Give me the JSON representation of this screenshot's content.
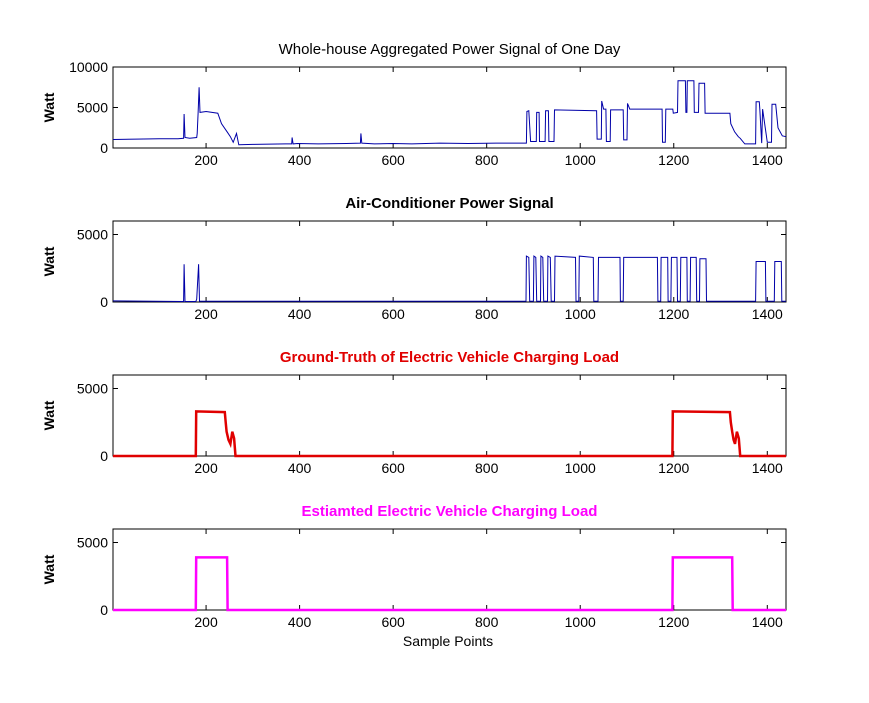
{
  "figure": {
    "xlabel": "Sample Points"
  },
  "chart_data": [
    {
      "type": "line",
      "title": "Whole-house Aggregated Power Signal of One Day",
      "title_color": "#000000",
      "title_weight": "normal",
      "ylabel": "Watt",
      "xlabel": "",
      "xlim": [
        1,
        1440
      ],
      "ylim": [
        0,
        10000
      ],
      "xticks": [
        200,
        400,
        600,
        800,
        1000,
        1200,
        1400
      ],
      "yticks": [
        0,
        5000,
        10000
      ],
      "grid": false,
      "series": [
        {
          "color": "#0000a8",
          "line_width": 1,
          "points": [
            [
              1,
              1050
            ],
            [
              50,
              1100
            ],
            [
              100,
              1150
            ],
            [
              140,
              1150
            ],
            [
              152,
              1200
            ],
            [
              153,
              4200
            ],
            [
              155,
              1300
            ],
            [
              165,
              1200
            ],
            [
              180,
              1300
            ],
            [
              181,
              1800
            ],
            [
              183,
              4300
            ],
            [
              185,
              7500
            ],
            [
              187,
              4400
            ],
            [
              200,
              4500
            ],
            [
              225,
              4300
            ],
            [
              233,
              3000
            ],
            [
              245,
              2000
            ],
            [
              252,
              1400
            ],
            [
              258,
              700
            ],
            [
              265,
              1800
            ],
            [
              270,
              400
            ],
            [
              300,
              450
            ],
            [
              370,
              500
            ],
            [
              383,
              500
            ],
            [
              384,
              1300
            ],
            [
              386,
              500
            ],
            [
              395,
              550
            ],
            [
              440,
              500
            ],
            [
              500,
              550
            ],
            [
              530,
              600
            ],
            [
              531,
              1800
            ],
            [
              533,
              600
            ],
            [
              560,
              500
            ],
            [
              600,
              550
            ],
            [
              640,
              500
            ],
            [
              700,
              600
            ],
            [
              760,
              550
            ],
            [
              820,
              600
            ],
            [
              870,
              600
            ],
            [
              885,
              600
            ],
            [
              886,
              4500
            ],
            [
              890,
              4600
            ],
            [
              894,
              800
            ],
            [
              906,
              800
            ],
            [
              907,
              4400
            ],
            [
              912,
              4400
            ],
            [
              913,
              800
            ],
            [
              925,
              800
            ],
            [
              926,
              4600
            ],
            [
              932,
              4600
            ],
            [
              933,
              800
            ],
            [
              944,
              800
            ],
            [
              945,
              4700
            ],
            [
              1035,
              4600
            ],
            [
              1036,
              1100
            ],
            [
              1045,
              1100
            ],
            [
              1046,
              5800
            ],
            [
              1050,
              4800
            ],
            [
              1055,
              4800
            ],
            [
              1056,
              800
            ],
            [
              1064,
              800
            ],
            [
              1065,
              4700
            ],
            [
              1092,
              4700
            ],
            [
              1093,
              1000
            ],
            [
              1100,
              1000
            ],
            [
              1101,
              5500
            ],
            [
              1106,
              4800
            ],
            [
              1175,
              4800
            ],
            [
              1176,
              700
            ],
            [
              1182,
              700
            ],
            [
              1183,
              4800
            ],
            [
              1198,
              4800
            ],
            [
              1199,
              4300
            ],
            [
              1208,
              4400
            ],
            [
              1209,
              8300
            ],
            [
              1225,
              8300
            ],
            [
              1226,
              4400
            ],
            [
              1228,
              4400
            ],
            [
              1229,
              8300
            ],
            [
              1243,
              8300
            ],
            [
              1244,
              4400
            ],
            [
              1253,
              4400
            ],
            [
              1254,
              8000
            ],
            [
              1266,
              8000
            ],
            [
              1267,
              4300
            ],
            [
              1320,
              4300
            ],
            [
              1322,
              3000
            ],
            [
              1330,
              2000
            ],
            [
              1338,
              1400
            ],
            [
              1342,
              1200
            ],
            [
              1352,
              500
            ],
            [
              1375,
              500
            ],
            [
              1376,
              5700
            ],
            [
              1383,
              5700
            ],
            [
              1384,
              4800
            ],
            [
              1388,
              600
            ],
            [
              1390,
              4800
            ],
            [
              1400,
              700
            ],
            [
              1409,
              700
            ],
            [
              1410,
              5400
            ],
            [
              1418,
              5400
            ],
            [
              1423,
              2500
            ],
            [
              1432,
              1500
            ],
            [
              1440,
              1400
            ]
          ]
        }
      ]
    },
    {
      "type": "line",
      "title": "Air-Conditioner Power Signal",
      "title_color": "#000000",
      "title_weight": "bold",
      "ylabel": "Watt",
      "xlabel": "",
      "xlim": [
        1,
        1440
      ],
      "ylim": [
        0,
        6000
      ],
      "xticks": [
        200,
        400,
        600,
        800,
        1000,
        1200,
        1400
      ],
      "yticks": [
        0,
        5000
      ],
      "grid": false,
      "series": [
        {
          "color": "#0000a8",
          "line_width": 1,
          "points": [
            [
              1,
              80
            ],
            [
              60,
              70
            ],
            [
              150,
              40
            ],
            [
              152,
              40
            ],
            [
              153,
              2800
            ],
            [
              155,
              40
            ],
            [
              178,
              40
            ],
            [
              180,
              200
            ],
            [
              184,
              2800
            ],
            [
              186,
              60
            ],
            [
              260,
              50
            ],
            [
              380,
              60
            ],
            [
              600,
              50
            ],
            [
              800,
              60
            ],
            [
              884,
              50
            ],
            [
              885,
              3400
            ],
            [
              890,
              3300
            ],
            [
              892,
              60
            ],
            [
              900,
              60
            ],
            [
              901,
              3400
            ],
            [
              905,
              3300
            ],
            [
              907,
              60
            ],
            [
              915,
              60
            ],
            [
              916,
              3400
            ],
            [
              920,
              3300
            ],
            [
              922,
              60
            ],
            [
              930,
              60
            ],
            [
              931,
              3400
            ],
            [
              936,
              3300
            ],
            [
              938,
              60
            ],
            [
              945,
              60
            ],
            [
              946,
              3400
            ],
            [
              990,
              3300
            ],
            [
              991,
              60
            ],
            [
              997,
              60
            ],
            [
              998,
              3400
            ],
            [
              1028,
              3300
            ],
            [
              1029,
              60
            ],
            [
              1038,
              60
            ],
            [
              1039,
              3300
            ],
            [
              1085,
              3300
            ],
            [
              1086,
              60
            ],
            [
              1092,
              60
            ],
            [
              1093,
              3300
            ],
            [
              1165,
              3300
            ],
            [
              1166,
              60
            ],
            [
              1172,
              60
            ],
            [
              1173,
              3300
            ],
            [
              1187,
              3300
            ],
            [
              1188,
              60
            ],
            [
              1194,
              60
            ],
            [
              1195,
              3300
            ],
            [
              1207,
              3300
            ],
            [
              1208,
              60
            ],
            [
              1214,
              60
            ],
            [
              1215,
              3300
            ],
            [
              1228,
              3300
            ],
            [
              1229,
              60
            ],
            [
              1235,
              60
            ],
            [
              1236,
              3300
            ],
            [
              1248,
              3300
            ],
            [
              1249,
              60
            ],
            [
              1255,
              60
            ],
            [
              1256,
              3200
            ],
            [
              1269,
              3200
            ],
            [
              1270,
              60
            ],
            [
              1375,
              60
            ],
            [
              1376,
              3000
            ],
            [
              1396,
              3000
            ],
            [
              1397,
              60
            ],
            [
              1415,
              60
            ],
            [
              1416,
              3000
            ],
            [
              1430,
              3000
            ],
            [
              1431,
              60
            ],
            [
              1440,
              60
            ]
          ]
        }
      ]
    },
    {
      "type": "line",
      "title": "Ground-Truth of Electric Vehicle Charging Load",
      "title_color": "#e00000",
      "title_weight": "bold",
      "ylabel": "Watt",
      "xlabel": "",
      "xlim": [
        1,
        1440
      ],
      "ylim": [
        0,
        6000
      ],
      "xticks": [
        200,
        400,
        600,
        800,
        1000,
        1200,
        1400
      ],
      "yticks": [
        0,
        5000
      ],
      "grid": false,
      "series": [
        {
          "color": "#e00000",
          "line_width": 2.5,
          "points": [
            [
              1,
              0
            ],
            [
              178,
              0
            ],
            [
              179,
              3300
            ],
            [
              240,
              3250
            ],
            [
              242,
              2500
            ],
            [
              244,
              1800
            ],
            [
              248,
              1200
            ],
            [
              252,
              900
            ],
            [
              256,
              1800
            ],
            [
              260,
              1300
            ],
            [
              263,
              0
            ],
            [
              1197,
              0
            ],
            [
              1198,
              3300
            ],
            [
              1320,
              3250
            ],
            [
              1322,
              2500
            ],
            [
              1325,
              1800
            ],
            [
              1328,
              1200
            ],
            [
              1331,
              900
            ],
            [
              1335,
              1800
            ],
            [
              1339,
              1300
            ],
            [
              1342,
              0
            ],
            [
              1440,
              0
            ]
          ]
        }
      ]
    },
    {
      "type": "line",
      "title": "Estiamted Electric Vehicle Charging Load",
      "title_color": "#ff00ff",
      "title_weight": "bold",
      "ylabel": "Watt",
      "xlabel": "Sample Points",
      "xlim": [
        1,
        1440
      ],
      "ylim": [
        0,
        6000
      ],
      "xticks": [
        200,
        400,
        600,
        800,
        1000,
        1200,
        1400
      ],
      "yticks": [
        0,
        5000
      ],
      "grid": false,
      "series": [
        {
          "color": "#ff00ff",
          "line_width": 2.5,
          "points": [
            [
              1,
              0
            ],
            [
              178,
              0
            ],
            [
              179,
              3900
            ],
            [
              245,
              3900
            ],
            [
              246,
              0
            ],
            [
              1197,
              0
            ],
            [
              1198,
              3900
            ],
            [
              1325,
              3900
            ],
            [
              1326,
              0
            ],
            [
              1440,
              0
            ]
          ]
        }
      ]
    }
  ]
}
